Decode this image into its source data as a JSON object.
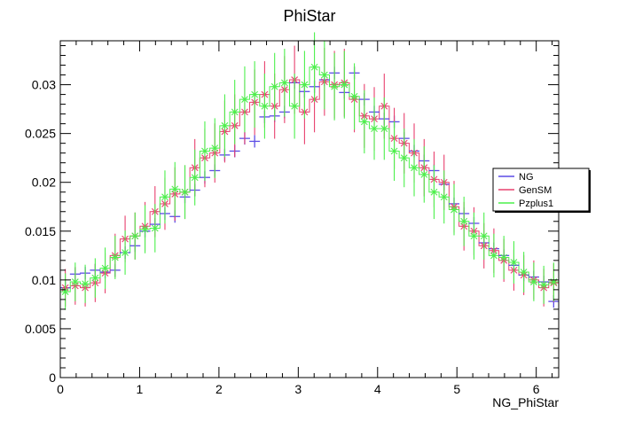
{
  "chart_data": {
    "type": "scatter",
    "title": "PhiStar",
    "xlabel": "NG_PhiStar",
    "ylabel": "",
    "xlim": [
      0,
      6.2832
    ],
    "ylim": [
      0,
      0.0345
    ],
    "x_ticks": [
      0,
      1,
      2,
      3,
      4,
      5,
      6
    ],
    "x_tick_labels": [
      "0",
      "1",
      "2",
      "3",
      "4",
      "5",
      "6"
    ],
    "y_ticks": [
      0,
      0.005,
      0.01,
      0.015,
      0.02,
      0.025,
      0.03
    ],
    "y_tick_labels": [
      "0",
      "0.005",
      "0.01",
      "0.015",
      "0.02",
      "0.025",
      "0.03"
    ],
    "grid": false,
    "legend_position": "right",
    "bins": 50,
    "bin_centers": [
      0.063,
      0.188,
      0.314,
      0.44,
      0.565,
      0.691,
      0.817,
      0.942,
      1.068,
      1.194,
      1.319,
      1.445,
      1.571,
      1.696,
      1.822,
      1.948,
      2.073,
      2.199,
      2.325,
      2.45,
      2.576,
      2.702,
      2.827,
      2.953,
      3.079,
      3.204,
      3.33,
      3.456,
      3.581,
      3.707,
      3.833,
      3.958,
      4.084,
      4.21,
      4.335,
      4.461,
      4.587,
      4.712,
      4.838,
      4.964,
      5.089,
      5.215,
      5.341,
      5.466,
      5.592,
      5.718,
      5.843,
      5.969,
      6.095,
      6.22
    ],
    "series": [
      {
        "name": "NG",
        "color": "#5c4ce6",
        "marker": "cross",
        "values": [
          0.0092,
          0.0106,
          0.0107,
          0.011,
          0.0108,
          0.011,
          0.0128,
          0.0135,
          0.015,
          0.0157,
          0.0168,
          0.0165,
          0.0185,
          0.0192,
          0.0205,
          0.0212,
          0.0228,
          0.0232,
          0.0245,
          0.0242,
          0.0267,
          0.0268,
          0.0272,
          0.0302,
          0.0293,
          0.0298,
          0.0305,
          0.0312,
          0.0292,
          0.0312,
          0.0285,
          0.0272,
          0.0265,
          0.0262,
          0.0245,
          0.0232,
          0.0222,
          0.0212,
          0.0198,
          0.0178,
          0.0168,
          0.0158,
          0.0138,
          0.0132,
          0.0125,
          0.0115,
          0.0105,
          0.0103,
          0.0098,
          0.0078
        ]
      },
      {
        "name": "GenSM",
        "color": "#e8406e",
        "marker": "star",
        "values": [
          0.0092,
          0.0094,
          0.0092,
          0.0097,
          0.0107,
          0.0125,
          0.0142,
          0.0145,
          0.0155,
          0.017,
          0.0178,
          0.0188,
          0.019,
          0.0215,
          0.0225,
          0.023,
          0.0252,
          0.0258,
          0.0272,
          0.0282,
          0.029,
          0.0278,
          0.0295,
          0.0305,
          0.0272,
          0.0285,
          0.0303,
          0.03,
          0.0302,
          0.0285,
          0.0268,
          0.0265,
          0.0278,
          0.0245,
          0.024,
          0.023,
          0.0215,
          0.0203,
          0.02,
          0.0175,
          0.0155,
          0.015,
          0.0135,
          0.013,
          0.012,
          0.011,
          0.0105,
          0.01,
          0.0092,
          0.0097
        ]
      },
      {
        "name": "Pzplus1",
        "color": "#4cf04c",
        "marker": "star",
        "values": [
          0.0088,
          0.0098,
          0.0096,
          0.0102,
          0.0112,
          0.0123,
          0.0128,
          0.0145,
          0.0152,
          0.0153,
          0.0185,
          0.0193,
          0.019,
          0.0205,
          0.0232,
          0.0235,
          0.0258,
          0.0272,
          0.0285,
          0.029,
          0.0278,
          0.0298,
          0.0302,
          0.0278,
          0.03,
          0.0318,
          0.031,
          0.0298,
          0.03,
          0.0288,
          0.0262,
          0.0255,
          0.0255,
          0.0232,
          0.0225,
          0.0215,
          0.0208,
          0.019,
          0.0185,
          0.0172,
          0.016,
          0.0145,
          0.0145,
          0.0125,
          0.0123,
          0.0118,
          0.0108,
          0.0098,
          0.0095,
          0.0098
        ]
      }
    ]
  }
}
